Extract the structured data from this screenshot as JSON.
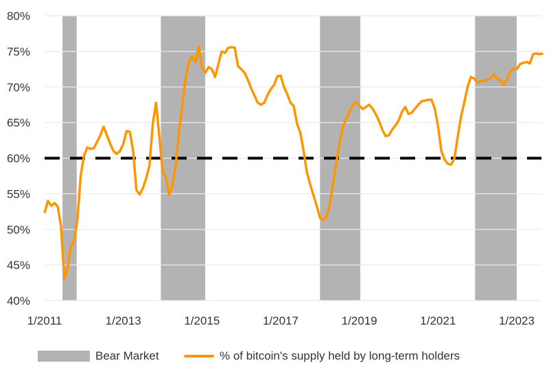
{
  "chart_data": {
    "type": "line",
    "title": "",
    "xlabel": "",
    "ylabel": "",
    "ylim": [
      40,
      80
    ],
    "y_ticks": [
      "40%",
      "45%",
      "50%",
      "55%",
      "60%",
      "65%",
      "70%",
      "75%",
      "80%"
    ],
    "x_ticks": [
      "1/2011",
      "1/2013",
      "1/2015",
      "1/2017",
      "1/2019",
      "1/2021",
      "1/2023"
    ],
    "xlim": [
      "2011-01",
      "2023-09"
    ],
    "grid": "horizontal",
    "legend_placement": "bottom",
    "reference_line": {
      "value": 60,
      "style": "dashed",
      "color": "#000000"
    },
    "shaded_periods": {
      "name": "Bear Market",
      "color": "#b3b3b3",
      "ranges": [
        [
          "2011-06-15",
          "2011-10-25"
        ],
        [
          "2013-12-15",
          "2015-02-01"
        ],
        [
          "2018-01-01",
          "2019-01-10"
        ],
        [
          "2021-12-10",
          "2023-01-01"
        ]
      ]
    },
    "series": [
      {
        "name": "% of bitcoin's supply held by long-term holders",
        "color": "#ff9500",
        "x": [
          "2011-01",
          "2011-02",
          "2011-03",
          "2011-04",
          "2011-05",
          "2011-06",
          "2011-07",
          "2011-08",
          "2011-09",
          "2011-10",
          "2011-11",
          "2011-12",
          "2012-01",
          "2012-02",
          "2012-03",
          "2012-04",
          "2012-05",
          "2012-06",
          "2012-07",
          "2012-08",
          "2012-09",
          "2012-10",
          "2012-11",
          "2012-12",
          "2013-01",
          "2013-02",
          "2013-03",
          "2013-04",
          "2013-05",
          "2013-06",
          "2013-07",
          "2013-08",
          "2013-09",
          "2013-10",
          "2013-11",
          "2013-12",
          "2014-01",
          "2014-02",
          "2014-03",
          "2014-04",
          "2014-05",
          "2014-06",
          "2014-07",
          "2014-08",
          "2014-09",
          "2014-10",
          "2014-11",
          "2014-12",
          "2015-01",
          "2015-02",
          "2015-03",
          "2015-04",
          "2015-05",
          "2015-06",
          "2015-07",
          "2015-08",
          "2015-09",
          "2015-10",
          "2015-11",
          "2015-12",
          "2016-01",
          "2016-02",
          "2016-03",
          "2016-04",
          "2016-05",
          "2016-06",
          "2016-07",
          "2016-08",
          "2016-09",
          "2016-10",
          "2016-11",
          "2016-12",
          "2017-01",
          "2017-02",
          "2017-03",
          "2017-04",
          "2017-05",
          "2017-06",
          "2017-07",
          "2017-08",
          "2017-09",
          "2017-10",
          "2017-11",
          "2017-12",
          "2018-01",
          "2018-02",
          "2018-03",
          "2018-04",
          "2018-05",
          "2018-06",
          "2018-07",
          "2018-08",
          "2018-09",
          "2018-10",
          "2018-11",
          "2018-12",
          "2019-01",
          "2019-02",
          "2019-03",
          "2019-04",
          "2019-05",
          "2019-06",
          "2019-07",
          "2019-08",
          "2019-09",
          "2019-10",
          "2019-11",
          "2019-12",
          "2020-01",
          "2020-02",
          "2020-03",
          "2020-04",
          "2020-05",
          "2020-06",
          "2020-07",
          "2020-08",
          "2020-09",
          "2020-10",
          "2020-11",
          "2020-12",
          "2021-01",
          "2021-02",
          "2021-03",
          "2021-04",
          "2021-05",
          "2021-06",
          "2021-07",
          "2021-08",
          "2021-09",
          "2021-10",
          "2021-11",
          "2021-12",
          "2022-01",
          "2022-02",
          "2022-03",
          "2022-04",
          "2022-05",
          "2022-06",
          "2022-07",
          "2022-08",
          "2022-09",
          "2022-10",
          "2022-11",
          "2022-12",
          "2023-01",
          "2023-02",
          "2023-03",
          "2023-04",
          "2023-05",
          "2023-06",
          "2023-07",
          "2023-08",
          "2023-09"
        ],
        "values": [
          52.3,
          54,
          53.3,
          53.7,
          53.2,
          50.4,
          43,
          44.5,
          47.6,
          48.3,
          51.4,
          57.5,
          60.3,
          61.5,
          61.3,
          61.4,
          62.3,
          63.2,
          64.4,
          63.2,
          62,
          61,
          60.6,
          61,
          62,
          63.8,
          63.7,
          61,
          55.5,
          54.9,
          55.8,
          57.2,
          59,
          64.9,
          67.8,
          63,
          58.1,
          57.3,
          54.8,
          56.2,
          59.1,
          63.9,
          67.5,
          71.1,
          73.5,
          74.3,
          73.5,
          75.7,
          72.7,
          72,
          72.8,
          72.5,
          71.4,
          73.2,
          75,
          74.8,
          75.5,
          75.6,
          75.5,
          72.9,
          72.5,
          72,
          71,
          69.8,
          68.8,
          67.8,
          67.5,
          67.8,
          68.9,
          69.7,
          70.3,
          71.5,
          71.6,
          70,
          69,
          67.8,
          67.3,
          64.8,
          63.6,
          61,
          58,
          56.3,
          54.8,
          53.3,
          51.6,
          51.3,
          51.8,
          53.5,
          56.5,
          59.5,
          62.2,
          64.5,
          65.5,
          66.5,
          67.5,
          67.9,
          67.4,
          66.9,
          67.2,
          67.5,
          67,
          66.2,
          65.2,
          64,
          63.1,
          63.2,
          64,
          64.6,
          65.3,
          66.5,
          67.2,
          66.2,
          66.4,
          67,
          67.5,
          68,
          68.1,
          68.2,
          68.2,
          67,
          64.5,
          61,
          59.8,
          59.2,
          59.1,
          60,
          63,
          65.8,
          67.8,
          70,
          71.4,
          71.2,
          70.6,
          70.8,
          70.9,
          71,
          71.2,
          71.8,
          71.2,
          70.9,
          70.3,
          71,
          72.2,
          72.6,
          72.5,
          73.2,
          73.4,
          73.5,
          73.3,
          74.6,
          74.7,
          74.6,
          74.7
        ]
      }
    ]
  }
}
